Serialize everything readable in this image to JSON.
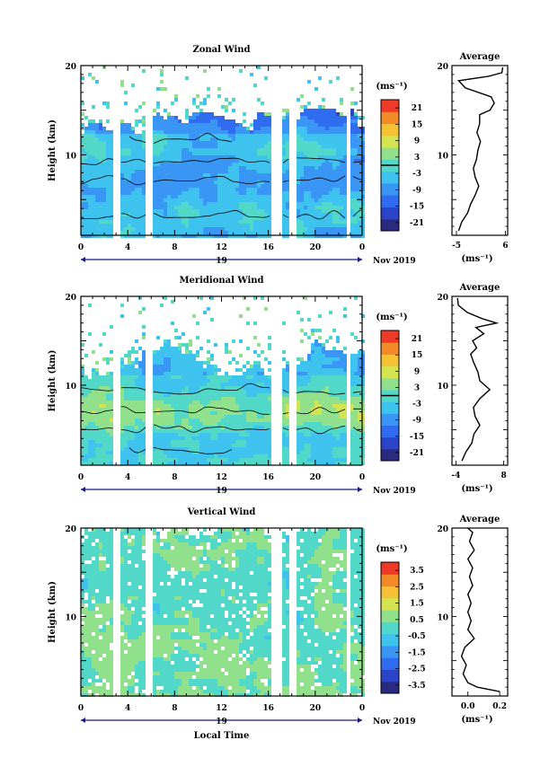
{
  "date_label": "Nov 2019",
  "day_label": "19",
  "xaxis_label": "Local Time",
  "colors": {
    "colormap": [
      "#2a2a80",
      "#2c44c8",
      "#2f6cf0",
      "#3a96f4",
      "#3ec2ee",
      "#52d8c8",
      "#90e08c",
      "#d4e450",
      "#f4c234",
      "#f28a28",
      "#ee3a26"
    ]
  },
  "chart_data": [
    {
      "type": "heatmap",
      "title": "Zonal Wind",
      "ylabel": "Height (km)",
      "x_ticks": [
        "0",
        "4",
        "8",
        "12",
        "16",
        "20",
        "0"
      ],
      "x_ticks_hours": [
        0,
        4,
        8,
        12,
        16,
        20,
        24
      ],
      "y_ticks": [
        "20",
        "10"
      ],
      "y_ticks_km": [
        20,
        10
      ],
      "xlim_hours": [
        0,
        24
      ],
      "ylim_km": [
        1,
        20
      ],
      "colorbar": {
        "unit": "(ms⁻¹)",
        "ticks": [
          "21",
          "15",
          "9",
          "3",
          "-3",
          "-9",
          "-15",
          "-21"
        ],
        "range": [
          -24,
          24
        ],
        "contour": 0
      },
      "data_gaps_hours": [
        [
          2.9,
          3.3
        ],
        [
          5.6,
          6.0
        ],
        [
          16.2,
          17.2
        ],
        [
          17.9,
          18.3
        ],
        [
          22.7,
          23.1
        ]
      ],
      "top_km_by_hour": [
        [
          0,
          13.5
        ],
        [
          4,
          13
        ],
        [
          8,
          14.5
        ],
        [
          12,
          13.5
        ],
        [
          16,
          14
        ],
        [
          20,
          14.5
        ],
        [
          24,
          14
        ]
      ],
      "sparse_top_km": 17,
      "profile": {
        "title": "Average",
        "xlabel": "(ms⁻¹)",
        "x_ticks": [
          "-5",
          "6"
        ],
        "x_ticks_values": [
          -5,
          6
        ],
        "y_ticks": [
          "20",
          "10"
        ],
        "xlim": [
          -6,
          6.5
        ],
        "ylim": [
          1,
          20
        ],
        "points": [
          [
            -4.5,
            1.5
          ],
          [
            -3.8,
            2.5
          ],
          [
            -2.5,
            3.5
          ],
          [
            -1.8,
            4.5
          ],
          [
            -0.8,
            5.5
          ],
          [
            0,
            6.5
          ],
          [
            -0.8,
            7.5
          ],
          [
            -1.2,
            8.5
          ],
          [
            -0.5,
            9.5
          ],
          [
            -0.2,
            10.5
          ],
          [
            0.4,
            11.5
          ],
          [
            -0.4,
            12.5
          ],
          [
            0.2,
            13.5
          ],
          [
            0.2,
            14.5
          ],
          [
            2.5,
            15
          ],
          [
            3.5,
            15.8
          ],
          [
            2.8,
            16.5
          ],
          [
            -3,
            17.5
          ],
          [
            -4.5,
            18.3
          ],
          [
            2.2,
            18.8
          ],
          [
            5.2,
            19.2
          ],
          [
            5.4,
            19.8
          ]
        ]
      }
    },
    {
      "type": "heatmap",
      "title": "Meridional Wind",
      "ylabel": "Height (km)",
      "x_ticks": [
        "0",
        "4",
        "8",
        "12",
        "16",
        "20",
        "0"
      ],
      "x_ticks_hours": [
        0,
        4,
        8,
        12,
        16,
        20,
        24
      ],
      "y_ticks": [
        "20",
        "10"
      ],
      "y_ticks_km": [
        20,
        10
      ],
      "xlim_hours": [
        0,
        24
      ],
      "ylim_km": [
        1,
        20
      ],
      "colorbar": {
        "unit": "(ms⁻¹)",
        "ticks": [
          "21",
          "15",
          "9",
          "3",
          "-3",
          "-9",
          "-15",
          "-21"
        ],
        "range": [
          -24,
          24
        ],
        "contour": 0
      },
      "data_gaps_hours": [
        [
          2.9,
          3.3
        ],
        [
          5.6,
          6.0
        ],
        [
          16.2,
          17.2
        ],
        [
          17.9,
          18.3
        ],
        [
          22.7,
          23.1
        ]
      ],
      "top_km_by_hour": [
        [
          0,
          11.5
        ],
        [
          4,
          12.5
        ],
        [
          8,
          14.5
        ],
        [
          12,
          12
        ],
        [
          16,
          11.5
        ],
        [
          20,
          14
        ],
        [
          24,
          13
        ]
      ],
      "sparse_top_km": 16.5,
      "profile": {
        "title": "Average",
        "xlabel": "(ms⁻¹)",
        "x_ticks": [
          "-4",
          "8"
        ],
        "x_ticks_values": [
          -4,
          8
        ],
        "y_ticks": [
          "20",
          "10"
        ],
        "xlim": [
          -5,
          9
        ],
        "ylim": [
          1,
          20
        ],
        "points": [
          [
            -2.5,
            1.5
          ],
          [
            -1.5,
            2.5
          ],
          [
            0,
            3.5
          ],
          [
            0.5,
            4.5
          ],
          [
            2,
            5.5
          ],
          [
            0.8,
            6.5
          ],
          [
            0.4,
            7.5
          ],
          [
            2,
            8.5
          ],
          [
            4.5,
            9.5
          ],
          [
            2,
            10.5
          ],
          [
            1.5,
            11.5
          ],
          [
            0.5,
            12.5
          ],
          [
            -0.3,
            13.5
          ],
          [
            1.2,
            14.2
          ],
          [
            0.2,
            15
          ],
          [
            3,
            15.8
          ],
          [
            1,
            16.5
          ],
          [
            6.2,
            17
          ],
          [
            2.5,
            17.5
          ],
          [
            -1.2,
            18.2
          ],
          [
            -3.4,
            19
          ],
          [
            -3.6,
            19.8
          ]
        ]
      }
    },
    {
      "type": "heatmap",
      "title": "Vertical Wind",
      "ylabel": "Height (km)",
      "x_ticks": [
        "0",
        "4",
        "8",
        "12",
        "16",
        "20",
        "0"
      ],
      "x_ticks_hours": [
        0,
        4,
        8,
        12,
        16,
        20,
        24
      ],
      "y_ticks": [
        "20",
        "10"
      ],
      "y_ticks_km": [
        20,
        10
      ],
      "xlim_hours": [
        0,
        24
      ],
      "ylim_km": [
        1,
        20
      ],
      "colorbar": {
        "unit": "(ms⁻¹)",
        "ticks": [
          "3.5",
          "2.5",
          "1.5",
          "0.5",
          "-0.5",
          "-1.5",
          "-2.5",
          "-3.5"
        ],
        "range": [
          -4,
          4
        ]
      },
      "data_gaps_hours": [
        [
          2.9,
          3.3
        ],
        [
          5.6,
          6.0
        ],
        [
          16.2,
          17.2
        ],
        [
          17.9,
          18.3
        ],
        [
          22.7,
          23.1
        ]
      ],
      "top_km_by_hour": [
        [
          0,
          20
        ],
        [
          24,
          20
        ]
      ],
      "sparse_top_km": 20,
      "profile": {
        "title": "Average",
        "xlabel": "(ms⁻¹)",
        "x_ticks": [
          "0.0",
          "0.2"
        ],
        "x_ticks_values": [
          0,
          0.2
        ],
        "y_ticks": [
          "20",
          "10"
        ],
        "xlim": [
          -0.1,
          0.25
        ],
        "ylim": [
          1,
          20
        ],
        "points": [
          [
            0.2,
            1.5
          ],
          [
            0.06,
            2
          ],
          [
            0.0,
            2.5
          ],
          [
            -0.03,
            3.5
          ],
          [
            -0.01,
            4.5
          ],
          [
            -0.04,
            5.5
          ],
          [
            -0.02,
            6.5
          ],
          [
            0.04,
            7.5
          ],
          [
            0.0,
            8.5
          ],
          [
            0.02,
            9.5
          ],
          [
            0.0,
            10.5
          ],
          [
            0.02,
            11.5
          ],
          [
            0.0,
            12.5
          ],
          [
            0.03,
            13.5
          ],
          [
            0.01,
            14.5
          ],
          [
            0.03,
            15.5
          ],
          [
            0.0,
            16.5
          ],
          [
            0.04,
            17.5
          ],
          [
            0.01,
            18.5
          ],
          [
            0.03,
            19.5
          ],
          [
            0.0,
            20
          ]
        ]
      }
    }
  ]
}
